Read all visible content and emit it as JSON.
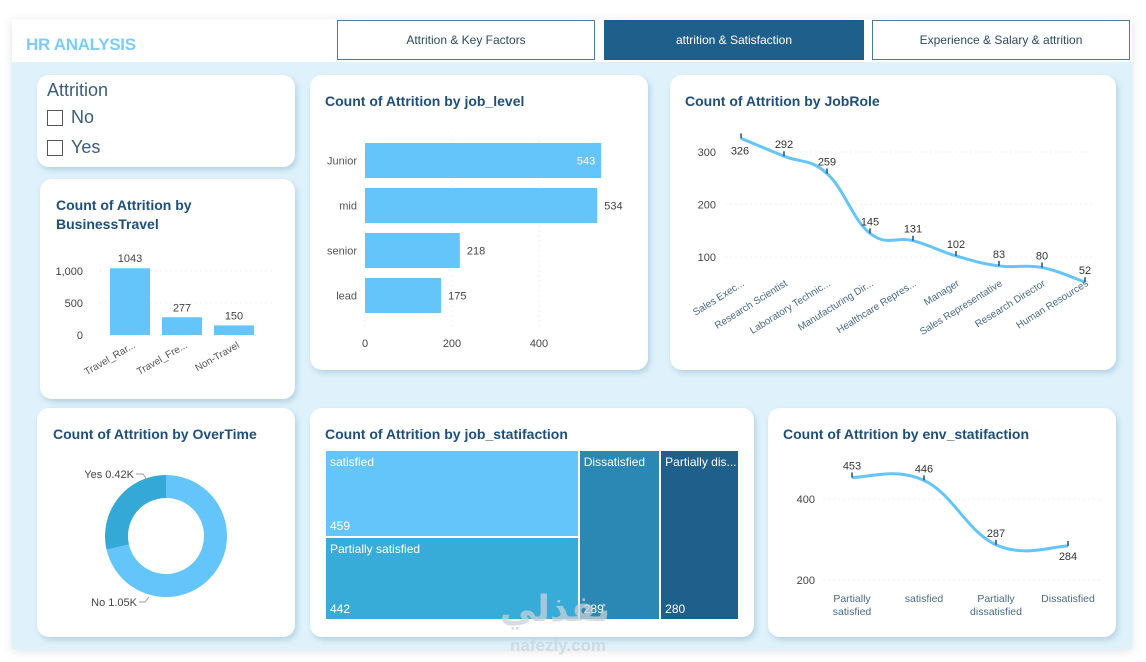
{
  "header": {
    "title": "HR ANALYSIS",
    "tabs": [
      {
        "label": "Attrition & Key Factors",
        "active": false
      },
      {
        "label": "attrition & Satisfaction",
        "active": true
      },
      {
        "label": "Experience & Salary & attrition",
        "active": false
      }
    ]
  },
  "slicer": {
    "title": "Attrition",
    "options": [
      {
        "label": "No",
        "checked": false
      },
      {
        "label": "Yes",
        "checked": false
      }
    ]
  },
  "colors": {
    "bar": "#63c5f9",
    "line": "#63c5f9",
    "title": "#1f4e79",
    "donut_no": "#63c5f9",
    "donut_yes": "#34a9d8",
    "treemap": [
      "#63c5f9",
      "#38acd9",
      "#2b87b3",
      "#1f5f8b"
    ],
    "active_tab": "#1f5f8b",
    "background": "#dff2fb"
  },
  "chart_data": [
    {
      "id": "business_travel",
      "type": "bar",
      "title": "Count of Attrition by BusinessTravel",
      "categories": [
        "Travel_Rar...",
        "Travel_Fre...",
        "Non-Travel"
      ],
      "values": [
        1043,
        277,
        150
      ],
      "yticks": [
        "0",
        "500",
        "1,000"
      ],
      "ylim": [
        0,
        1100
      ],
      "xlabel": "",
      "ylabel": ""
    },
    {
      "id": "job_level",
      "type": "bar",
      "orientation": "horizontal",
      "title": "Count of Attrition by job_level",
      "categories": [
        "Junior",
        "mid",
        "senior",
        "lead"
      ],
      "values": [
        543,
        534,
        218,
        175
      ],
      "xticks": [
        "0",
        "200",
        "400"
      ],
      "xlim": [
        0,
        560
      ]
    },
    {
      "id": "job_role",
      "type": "line",
      "title": "Count of Attrition by JobRole",
      "categories": [
        "Sales Exec...",
        "Research Scientist",
        "Laboratory Technic...",
        "Manufacturing Dir...",
        "Healthcare Repres...",
        "Manager",
        "Sales Representative",
        "Research Director",
        "Human Resources"
      ],
      "values": [
        326,
        292,
        259,
        145,
        131,
        102,
        83,
        80,
        52
      ],
      "yticks": [
        "100",
        "200",
        "300"
      ],
      "ylim": [
        30,
        340
      ]
    },
    {
      "id": "overtime",
      "type": "pie",
      "donut": true,
      "title": "Count of Attrition by OverTime",
      "labels": [
        "No",
        "Yes"
      ],
      "values": [
        1050,
        420
      ],
      "display_labels": [
        "No 1.05K",
        "Yes 0.42K"
      ]
    },
    {
      "id": "job_satisfaction",
      "type": "treemap",
      "title": "Count of Attrition by job_statifaction",
      "labels": [
        "satisfied",
        "Partially satisfied",
        "Dissatisfied",
        "Partially dis..."
      ],
      "values": [
        459,
        442,
        289,
        280
      ]
    },
    {
      "id": "env_satisfaction",
      "type": "line",
      "title": "Count of Attrition by env_statifaction",
      "categories": [
        "Partially satisfied",
        "satisfied",
        "Partially dissatisfied",
        "Dissatisfied"
      ],
      "values": [
        453,
        446,
        287,
        284
      ],
      "yticks": [
        "200",
        "400"
      ],
      "ylim": [
        200,
        470
      ]
    }
  ],
  "watermark": {
    "text": "نفذلي",
    "sub": "nafezly.com"
  }
}
